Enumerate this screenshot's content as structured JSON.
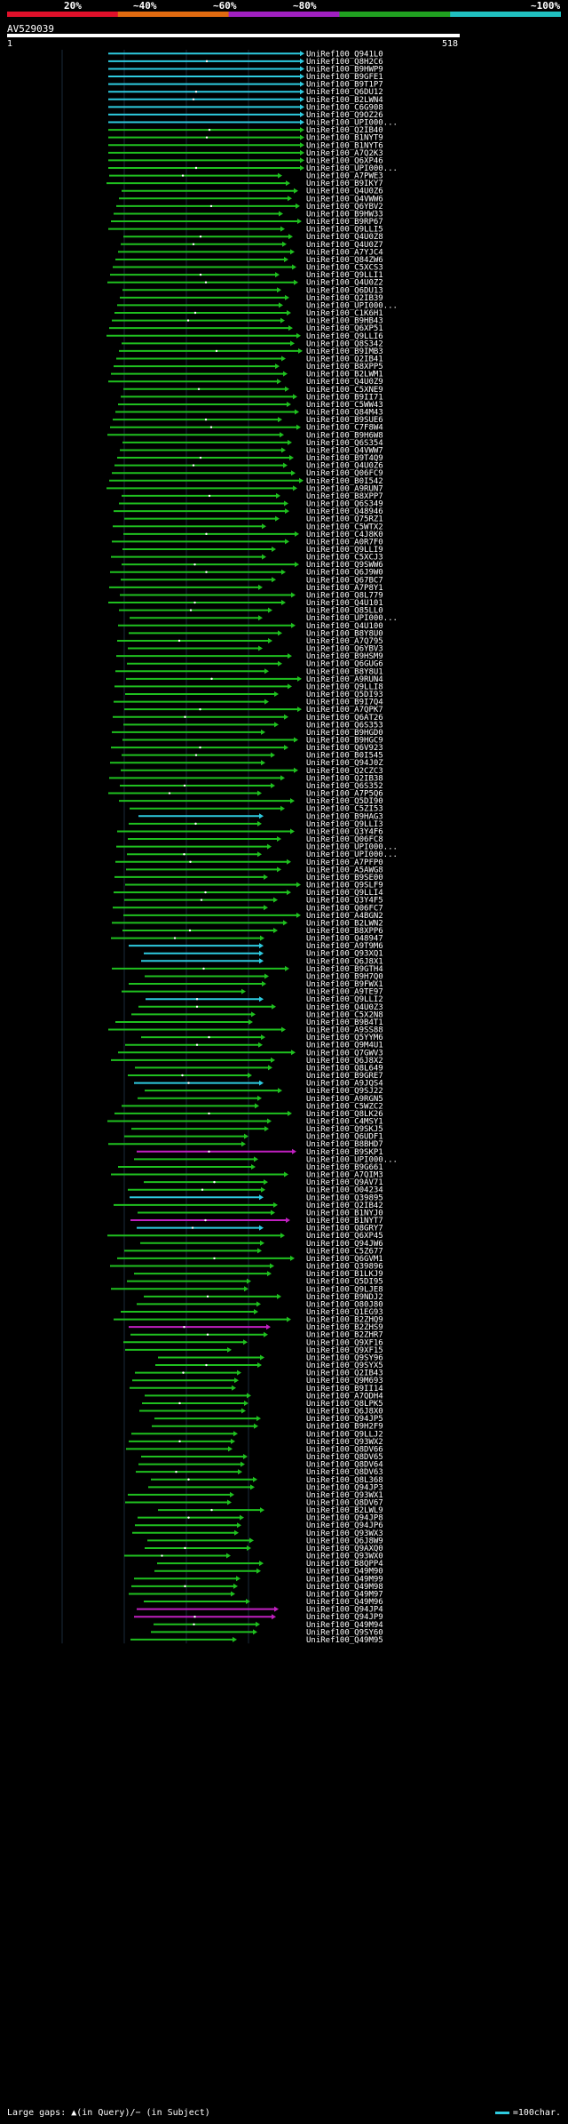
{
  "header": {
    "query_id": "AV529039",
    "query_start": "1",
    "query_end": "518",
    "scale_labels": [
      "20%",
      "~40%",
      "~60%",
      "~80%",
      "~100%"
    ]
  },
  "colors": {
    "bar_segments": [
      "#e0102a",
      "#e06a10",
      "#a020c0",
      "#20a020",
      "#20c0c0"
    ],
    "green": "#1fc01f",
    "cyan": "#2ecbe0",
    "magenta": "#c020c0"
  },
  "hits": [
    "UniRef100_Q941L0",
    "UniRef100_Q8H2C6",
    "UniRef100_B9HWP9",
    "UniRef100_B9GFE1",
    "UniRef100_B9T1P7",
    "UniRef100_Q6DU12",
    "UniRef100_B2LWN4",
    "UniRef100_C6G908",
    "UniRef100_Q9OZ26",
    "UniRef100_UPI000...",
    "UniRef100_Q2IB40",
    "UniRef100_B1NYT9",
    "UniRef100_B1NYT6",
    "UniRef100_A7Q2K3",
    "UniRef100_Q6XP46",
    "UniRef100_UPI000...",
    "UniRef100_A7PWE3",
    "UniRef100_B9IKY7",
    "UniRef100_Q4U0Z6",
    "UniRef100_Q4VWW6",
    "UniRef100_Q6YBV2",
    "UniRef100_B9HW33",
    "UniRef100_B9RP67",
    "UniRef100_Q9LLI5",
    "UniRef100_Q4U0Z8",
    "UniRef100_Q4U0Z7",
    "UniRef100_A7YJC4",
    "UniRef100_Q84ZW6",
    "UniRef100_C5XCS3",
    "UniRef100_Q9LLI1",
    "UniRef100_Q4U0Z2",
    "UniRef100_Q6DU13",
    "UniRef100_Q2IB39",
    "UniRef100_UPI000...",
    "UniRef100_C1K6H1",
    "UniRef100_B9HB43",
    "UniRef100_Q6XP51",
    "UniRef100_Q9LLI6",
    "UniRef100_Q8S342",
    "UniRef100_B9IMB3",
    "UniRef100_Q2IB41",
    "UniRef100_B8XPP5",
    "UniRef100_B2LWM1",
    "UniRef100_Q4U0Z9",
    "UniRef100_C5XNE9",
    "UniRef100_B9II71",
    "UniRef100_C5WW43",
    "UniRef100_Q84M43",
    "UniRef100_B9SUE6",
    "UniRef100_C7F8W4",
    "UniRef100_B9H6W8",
    "UniRef100_Q6S354",
    "UniRef100_Q4VWW7",
    "UniRef100_B9T4Q9",
    "UniRef100_Q4U0Z6",
    "UniRef100_Q06FC9",
    "UniRef100_B0I542",
    "UniRef100_A9RUN7",
    "UniRef100_B8XPP7",
    "UniRef100_Q6S349",
    "UniRef100_Q48946",
    "UniRef100_Q75RZ1",
    "UniRef100_C5WTX2",
    "UniRef100_C4J8K0",
    "UniRef100_A0R7F0",
    "UniRef100_Q9LLI9",
    "UniRef100_C5XCJ3",
    "UniRef100_Q9SWW6",
    "UniRef100_Q6J9W0",
    "UniRef100_Q67BC7",
    "UniRef100_A7P8Y1",
    "UniRef100_Q8L779",
    "UniRef100_Q4U101",
    "UniRef100_Q85LL0",
    "UniRef100_UPI000...",
    "UniRef100_Q4U100",
    "UniRef100_B8Y8U0",
    "UniRef100_A7Q795",
    "UniRef100_Q6YBV3",
    "UniRef100_B9HSM9",
    "UniRef100_Q6GUG6",
    "UniRef100_B8Y8U1",
    "UniRef100_A9RUN4",
    "UniRef100_Q9LLI8",
    "UniRef100_Q5DI93",
    "UniRef100_B9I7Q4",
    "UniRef100_A7QPK7",
    "UniRef100_Q6AT26",
    "UniRef100_Q6S353",
    "UniRef100_B9HGD0",
    "UniRef100_B9HGC9",
    "UniRef100_Q6V923",
    "UniRef100_B0I545",
    "UniRef100_Q94J0Z",
    "UniRef100_Q2CZC3",
    "UniRef100_Q2IB38",
    "UniRef100_Q6S352",
    "UniRef100_A7P5Q6",
    "UniRef100_Q5DI90",
    "UniRef100_C5ZI53",
    "UniRef100_B9HAG3",
    "UniRef100_Q9LLI3",
    "UniRef100_Q3Y4F6",
    "UniRef100_Q06FC8",
    "UniRef100_UPI000...",
    "UniRef100_UPI000...",
    "UniRef100_A7PFP0",
    "UniRef100_A5AWG8",
    "UniRef100_B9SE00",
    "UniRef100_Q9SLF9",
    "UniRef100_Q9LLI4",
    "UniRef100_Q3Y4F5",
    "UniRef100_Q06FC7",
    "UniRef100_A4BGN2",
    "UniRef100_B2LWN2",
    "UniRef100_B8XPP6",
    "UniRef100_Q48947",
    "UniRef100_A9T9M6",
    "UniRef100_Q93XQ1",
    "UniRef100_Q6J8X1",
    "UniRef100_B9GTH4",
    "UniRef100_B9H7Q0",
    "UniRef100_B9FWX1",
    "UniRef100_A9TE97",
    "UniRef100_Q9LLI2",
    "UniRef100_Q4U0Z3",
    "UniRef100_C5X2N8",
    "UniRef100_B9B4T1",
    "UniRef100_A9SS88",
    "UniRef100_Q5YYM6",
    "UniRef100_Q9M4U1",
    "UniRef100_Q7GWV3",
    "UniRef100_Q6J8X2",
    "UniRef100_Q8L649",
    "UniRef100_B9GRE7",
    "UniRef100_A9JQS4",
    "UniRef100_Q9SJ22",
    "UniRef100_A9RGN5",
    "UniRef100_C5WZC2",
    "UniRef100_Q8LK26",
    "UniRef100_C4MSY1",
    "UniRef100_Q9SKJ5",
    "UniRef100_Q6UDF1",
    "UniRef100_B8BHD7",
    "UniRef100_B9SKP1",
    "UniRef100_UPI000...",
    "UniRef100_B9G661",
    "UniRef100_A7QIM3",
    "UniRef100_Q9AV71",
    "UniRef100_O04234",
    "UniRef100_Q39895",
    "UniRef100_Q2IB42",
    "UniRef100_B1NYJ0",
    "UniRef100_B1NYT7",
    "UniRef100_Q8GRY7",
    "UniRef100_Q6XP45",
    "UniRef100_Q94JW6",
    "UniRef100_C5Z677",
    "UniRef100_Q6GVM1",
    "UniRef100_Q39896",
    "UniRef100_B1LKJ9",
    "UniRef100_Q5DI95",
    "UniRef100_Q9LJE8",
    "UniRef100_B9NDJ2",
    "UniRef100_O80J80",
    "UniRef100_Q1EG93",
    "UniRef100_B2ZHQ9",
    "UniRef100_B2ZHS9",
    "UniRef100_B2ZHR7",
    "UniRef100_Q9XF16",
    "UniRef100_Q9XF15",
    "UniRef100_Q9SY96",
    "UniRef100_Q9SYX5",
    "UniRef100_Q2IB43",
    "UniRef100_Q9M693",
    "UniRef100_B9II14",
    "UniRef100_A7QDH4",
    "UniRef100_Q8LPK5",
    "UniRef100_Q6J8X0",
    "UniRef100_Q94JP5",
    "UniRef100_B9H2F9",
    "UniRef100_Q9LLJ2",
    "UniRef100_Q93WX2",
    "UniRef100_Q8DV66",
    "UniRef100_Q8DV65",
    "UniRef100_Q8DV64",
    "UniRef100_Q8DV63",
    "UniRef100_Q8L368",
    "UniRef100_Q94JP3",
    "UniRef100_Q93WX1",
    "UniRef100_Q8DV67",
    "UniRef100_B2LWL9",
    "UniRef100_Q94JP8",
    "UniRef100_Q94JP6",
    "UniRef100_Q93WX3",
    "UniRef100_Q6J8W9",
    "UniRef100_Q9AXQ0",
    "UniRef100_Q93WX0",
    "UniRef100_B8QPP4",
    "UniRef100_Q49M90",
    "UniRef100_Q49M99",
    "UniRef100_Q49M98",
    "UniRef100_Q49M97",
    "UniRef100_Q49M96",
    "UniRef100_Q94JP4",
    "UniRef100_Q94JP9",
    "UniRef100_Q49M94",
    "UniRef100_Q9SY60",
    "UniRef100_Q49M95"
  ],
  "footer": {
    "legend_left": "Large gaps: ▲(in Query)/− (in Subject)",
    "legend_right": "=100char."
  }
}
